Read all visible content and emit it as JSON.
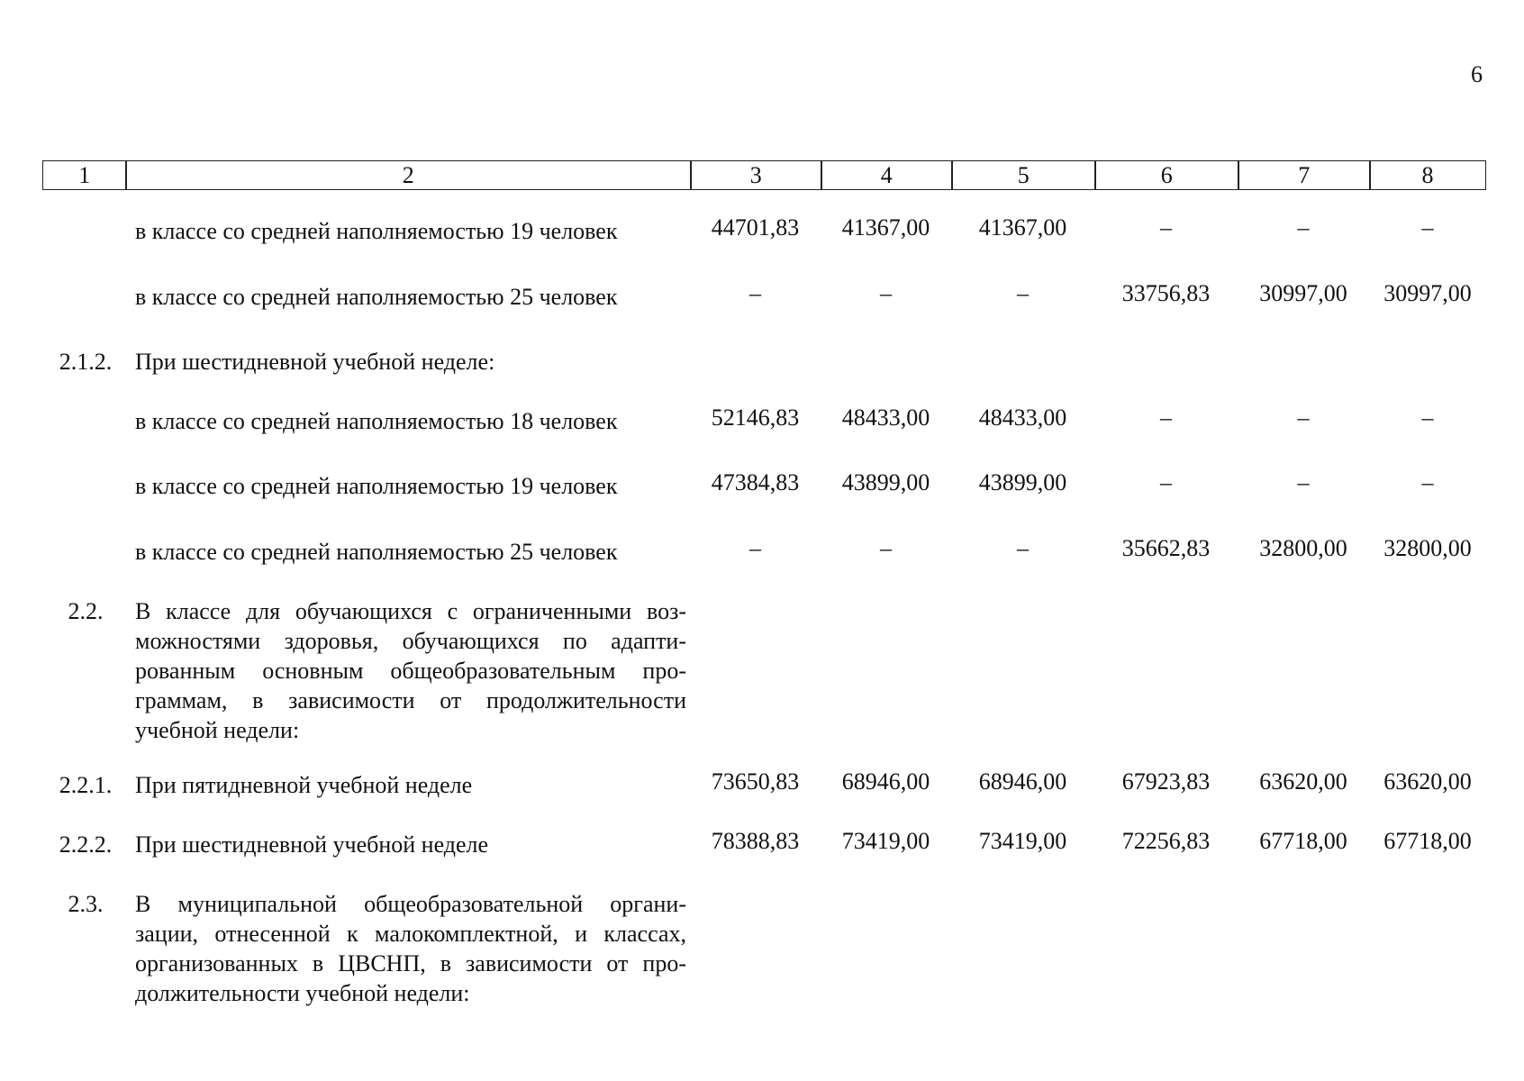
{
  "page_number": "6",
  "table": {
    "header": [
      "1",
      "2",
      "3",
      "4",
      "5",
      "6",
      "7",
      "8"
    ],
    "rows": [
      {
        "num": null,
        "text": [
          "в классе со средней наполняемостью 19 человек"
        ],
        "values": [
          "44701,83",
          "41367,00",
          "41367,00",
          "–",
          "–",
          "–"
        ]
      },
      {
        "num": null,
        "text": [
          "в классе со средней наполняемостью 25 человек"
        ],
        "values": [
          "–",
          "–",
          "–",
          "33756,83",
          "30997,00",
          "30997,00"
        ]
      },
      {
        "num": "2.1.2.",
        "text": [
          "При шестидневной учебной неделе:"
        ],
        "values": null
      },
      {
        "num": null,
        "text": [
          "в классе со средней наполняемостью 18 человек"
        ],
        "values": [
          "52146,83",
          "48433,00",
          "48433,00",
          "–",
          "–",
          "–"
        ]
      },
      {
        "num": null,
        "text": [
          "в классе со средней наполняемостью 19 человек"
        ],
        "values": [
          "47384,83",
          "43899,00",
          "43899,00",
          "–",
          "–",
          "–"
        ]
      },
      {
        "num": null,
        "text": [
          "в классе со средней наполняемостью 25 человек"
        ],
        "values": [
          "–",
          "–",
          "–",
          "35662,83",
          "32800,00",
          "32800,00"
        ]
      },
      {
        "num": "2.2.",
        "text": [
          "В классе для обучающихся с ограниченными воз-",
          "можностями здоровья, обучающихся по адапти-",
          "рованным основным общеобразовательным про-",
          "граммам, в зависимости от продолжительности",
          "учебной недели:"
        ],
        "values": null
      },
      {
        "num": "2.2.1.",
        "text": [
          "При пятидневной учебной неделе"
        ],
        "values": [
          "73650,83",
          "68946,00",
          "68946,00",
          "67923,83",
          "63620,00",
          "63620,00"
        ]
      },
      {
        "num": "2.2.2.",
        "text": [
          "При шестидневной учебной неделе"
        ],
        "values": [
          "78388,83",
          "73419,00",
          "73419,00",
          "72256,83",
          "67718,00",
          "67718,00"
        ]
      },
      {
        "num": "2.3.",
        "text": [
          "В муниципальной общеобразовательной органи-",
          "зации, отнесенной к малокомплектной, и классах,",
          "организованных в ЦВСНП, в зависимости от про-",
          "должительности учебной недели:"
        ],
        "values": null
      }
    ]
  }
}
